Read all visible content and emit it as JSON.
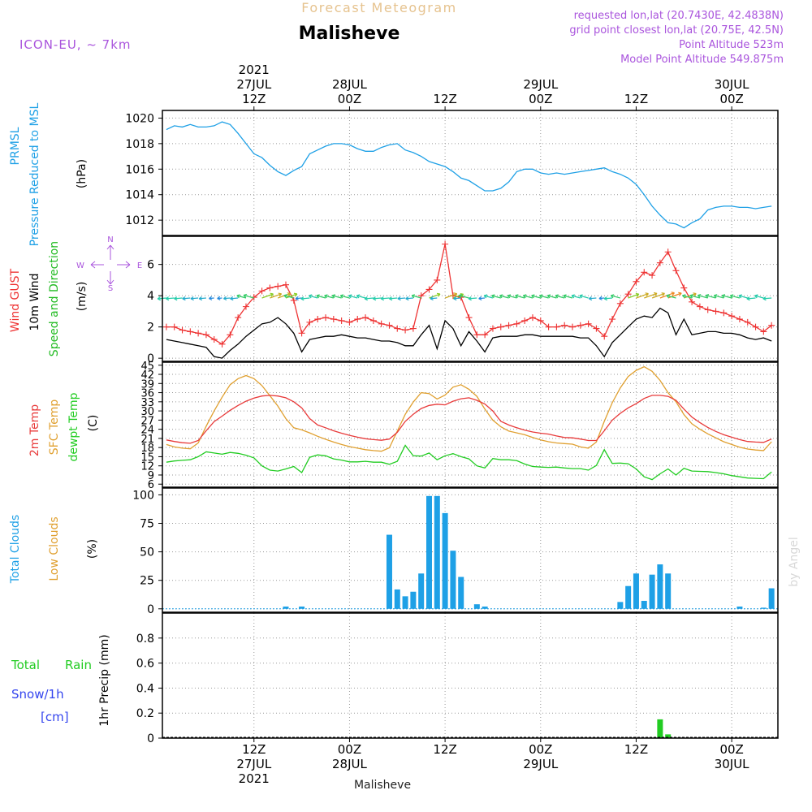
{
  "header": {
    "product": "Forecast Meteogram",
    "location": "Malisheve",
    "model": "ICON-EU, ~ 7km",
    "requested": "requested lon,lat (20.7430E, 42.4838N)",
    "gridpoint": "grid point closest lon,lat (20.75E, 42.5N)",
    "point_alt": "Point Altitude 523m",
    "model_alt": "Model Point Altitude 549.875m",
    "credit": "by Angel",
    "footer_location": "Malisheve"
  },
  "colors": {
    "pressure": "#1ea0e6",
    "gust": "#ee3333",
    "wind10m": "#000000",
    "wind_dir": "#22bb22",
    "temp2m": "#e83a3a",
    "sfc_temp": "#e0a030",
    "dewpt": "#22cc22",
    "total_clouds": "#1ea0e6",
    "low_clouds": "#e0a030",
    "rain": "#22cc22",
    "snow": "#3344ee",
    "title": "#e6c38f",
    "info": "#aa55dd",
    "grid": "#999999"
  },
  "chart_data": [
    {
      "type": "line",
      "panel": "pressure",
      "labels": [
        "PRMSL",
        "Pressure Reduced to MSL"
      ],
      "unit": "(hPa)",
      "ylim": [
        1010.8,
        1020.6
      ],
      "ticks": [
        "1012",
        "1014",
        "1016",
        "1018",
        "1020"
      ],
      "x": [
        0,
        1,
        2,
        3,
        4,
        5,
        6,
        7,
        8,
        9,
        10,
        11,
        12,
        13,
        14,
        15,
        16,
        17,
        18,
        19,
        20,
        21,
        22,
        23,
        24,
        25,
        26,
        27,
        28,
        29,
        30,
        31,
        32,
        33,
        34,
        35,
        36,
        37,
        38,
        39,
        40,
        41,
        42,
        43,
        44,
        45,
        46,
        47,
        48,
        49,
        50,
        51,
        52,
        53,
        54,
        55,
        56,
        57,
        58,
        59,
        60,
        61,
        62,
        63,
        64,
        65,
        66,
        67,
        68,
        69,
        70,
        71,
        72,
        73,
        74,
        75,
        76
      ],
      "series": [
        {
          "name": "PRMSL",
          "values": [
            1019.1,
            1019.4,
            1019.3,
            1019.5,
            1019.3,
            1019.3,
            1019.4,
            1019.7,
            1019.5,
            1018.8,
            1018.0,
            1017.2,
            1016.9,
            1016.3,
            1015.8,
            1015.5,
            1015.9,
            1016.2,
            1017.2,
            1017.5,
            1017.8,
            1018.0,
            1018.0,
            1017.9,
            1017.6,
            1017.4,
            1017.4,
            1017.7,
            1017.9,
            1018.0,
            1017.5,
            1017.3,
            1017.0,
            1016.6,
            1016.4,
            1016.2,
            1015.8,
            1015.3,
            1015.1,
            1014.7,
            1014.3,
            1014.3,
            1014.5,
            1015.0,
            1015.8,
            1016.0,
            1016.0,
            1015.7,
            1015.6,
            1015.7,
            1015.6,
            1015.7,
            1015.8,
            1015.9,
            1016.0,
            1016.1,
            1015.8,
            1015.6,
            1015.3,
            1014.8,
            1014.0,
            1013.1,
            1012.4,
            1011.8,
            1011.7,
            1011.4,
            1011.8,
            1012.1,
            1012.8,
            1013.0,
            1013.1,
            1013.1,
            1013.0,
            1013.0,
            1012.9,
            1013.0,
            1013.1
          ]
        }
      ]
    },
    {
      "type": "line",
      "panel": "wind",
      "labels": [
        "Wind GUST",
        "10m Wind",
        "Speed and Direction"
      ],
      "unit": "(m/s)",
      "ylim": [
        -0.2,
        7.8
      ],
      "ticks": [
        "0",
        "2",
        "4",
        "6"
      ],
      "compass": {
        "n": "N",
        "s": "S",
        "w": "W",
        "e": "E"
      },
      "x": [
        0,
        1,
        2,
        3,
        4,
        5,
        6,
        7,
        8,
        9,
        10,
        11,
        12,
        13,
        14,
        15,
        16,
        17,
        18,
        19,
        20,
        21,
        22,
        23,
        24,
        25,
        26,
        27,
        28,
        29,
        30,
        31,
        32,
        33,
        34,
        35,
        36,
        37,
        38,
        39,
        40,
        41,
        42,
        43,
        44,
        45,
        46,
        47,
        48,
        49,
        50,
        51,
        52,
        53,
        54,
        55,
        56,
        57,
        58,
        59,
        60,
        61,
        62,
        63,
        64,
        65,
        66,
        67,
        68,
        69,
        70,
        71,
        72,
        73,
        74,
        75,
        76
      ],
      "series": [
        {
          "name": "Wind GUST",
          "values": [
            2.0,
            2.0,
            1.8,
            1.7,
            1.6,
            1.5,
            1.2,
            0.9,
            1.5,
            2.6,
            3.3,
            3.9,
            4.3,
            4.5,
            4.6,
            4.7,
            3.7,
            1.6,
            2.3,
            2.5,
            2.6,
            2.5,
            2.4,
            2.3,
            2.5,
            2.6,
            2.4,
            2.2,
            2.1,
            1.9,
            1.8,
            1.9,
            4.0,
            4.4,
            5.0,
            7.3,
            4.0,
            3.9,
            2.6,
            1.5,
            1.5,
            1.9,
            2.0,
            2.1,
            2.2,
            2.4,
            2.6,
            2.4,
            2.0,
            2.0,
            2.1,
            2.0,
            2.1,
            2.2,
            1.9,
            1.4,
            2.5,
            3.5,
            4.1,
            4.9,
            5.5,
            5.3,
            6.1,
            6.8,
            5.6,
            4.5,
            3.6,
            3.3,
            3.1,
            3.0,
            2.9,
            2.7,
            2.5,
            2.3,
            2.0,
            1.7,
            2.1
          ]
        },
        {
          "name": "10m Wind",
          "values": [
            1.2,
            1.1,
            1.0,
            0.9,
            0.8,
            0.7,
            0.1,
            0.0,
            0.5,
            0.9,
            1.4,
            1.8,
            2.2,
            2.3,
            2.6,
            2.2,
            1.6,
            0.4,
            1.2,
            1.3,
            1.4,
            1.4,
            1.5,
            1.4,
            1.3,
            1.3,
            1.2,
            1.1,
            1.1,
            1.0,
            0.8,
            0.8,
            1.5,
            2.1,
            0.6,
            2.4,
            1.9,
            0.8,
            1.7,
            1.1,
            0.4,
            1.3,
            1.4,
            1.4,
            1.4,
            1.5,
            1.5,
            1.4,
            1.4,
            1.4,
            1.4,
            1.4,
            1.3,
            1.3,
            0.8,
            0.1,
            1.0,
            1.5,
            2.0,
            2.5,
            2.7,
            2.6,
            3.2,
            2.9,
            1.5,
            2.5,
            1.5,
            1.6,
            1.7,
            1.7,
            1.6,
            1.6,
            1.5,
            1.3,
            1.2,
            1.3,
            1.1
          ]
        }
      ]
    },
    {
      "type": "line",
      "panel": "temperature",
      "labels": [
        "2m Temp",
        "SFC Temp",
        "dewpt Temp"
      ],
      "unit": "(C)",
      "ylim": [
        5,
        46
      ],
      "ticks": [
        "6",
        "9",
        "12",
        "15",
        "18",
        "21",
        "24",
        "27",
        "30",
        "33",
        "36",
        "39",
        "42",
        "45"
      ],
      "x": [
        0,
        1,
        2,
        3,
        4,
        5,
        6,
        7,
        8,
        9,
        10,
        11,
        12,
        13,
        14,
        15,
        16,
        17,
        18,
        19,
        20,
        21,
        22,
        23,
        24,
        25,
        26,
        27,
        28,
        29,
        30,
        31,
        32,
        33,
        34,
        35,
        36,
        37,
        38,
        39,
        40,
        41,
        42,
        43,
        44,
        45,
        46,
        47,
        48,
        49,
        50,
        51,
        52,
        53,
        54,
        55,
        56,
        57,
        58,
        59,
        60,
        61,
        62,
        63,
        64,
        65,
        66,
        67,
        68,
        69,
        70,
        71,
        72,
        73,
        74,
        75,
        76
      ],
      "series": [
        {
          "name": "2m Temp",
          "values": [
            20.5,
            20.0,
            19.6,
            19.4,
            20.3,
            23.5,
            26.5,
            28.3,
            30.2,
            31.8,
            33.2,
            34.2,
            34.9,
            35.1,
            34.9,
            34.3,
            33.0,
            31.0,
            27.5,
            25.4,
            24.5,
            23.5,
            22.7,
            22.0,
            21.4,
            20.9,
            20.6,
            20.4,
            20.8,
            23.0,
            26.6,
            28.9,
            30.8,
            31.8,
            32.2,
            32.0,
            33.2,
            34.0,
            34.3,
            33.5,
            32.3,
            30.0,
            26.6,
            25.4,
            24.5,
            23.7,
            23.1,
            22.7,
            22.4,
            21.8,
            21.3,
            21.2,
            20.8,
            20.3,
            20.3,
            23.5,
            27.0,
            29.2,
            31.0,
            32.4,
            34.1,
            35.1,
            35.1,
            34.8,
            33.5,
            30.6,
            28.0,
            26.2,
            24.6,
            23.3,
            22.2,
            21.4,
            20.6,
            20.0,
            19.8,
            19.7,
            20.8
          ]
        },
        {
          "name": "SFC Temp",
          "values": [
            19.0,
            18.2,
            17.8,
            17.6,
            19.5,
            25.0,
            30.0,
            34.5,
            38.6,
            40.6,
            41.6,
            40.6,
            38.3,
            35.0,
            31.6,
            27.5,
            24.5,
            23.8,
            22.8,
            21.7,
            20.7,
            19.8,
            19.0,
            18.3,
            17.8,
            17.3,
            17.0,
            16.8,
            17.9,
            23.4,
            28.9,
            32.9,
            36.0,
            35.7,
            33.9,
            35.2,
            37.8,
            38.6,
            37.1,
            34.8,
            30.6,
            27.0,
            24.8,
            23.4,
            22.8,
            22.2,
            21.3,
            20.5,
            19.9,
            19.5,
            19.3,
            19.1,
            18.2,
            17.8,
            19.8,
            26.6,
            32.7,
            37.5,
            41.3,
            43.3,
            44.5,
            43.0,
            40.0,
            36.0,
            33.0,
            28.8,
            25.8,
            24.0,
            22.5,
            21.2,
            19.9,
            19.0,
            18.1,
            17.5,
            17.2,
            17.0,
            19.9
          ]
        },
        {
          "name": "dewpt Temp",
          "values": [
            13.2,
            13.6,
            13.8,
            14.0,
            15.0,
            16.6,
            16.2,
            15.8,
            16.4,
            16.1,
            15.5,
            14.6,
            12.0,
            10.6,
            10.3,
            11.0,
            11.8,
            9.8,
            14.8,
            15.6,
            15.3,
            14.3,
            13.9,
            13.3,
            13.3,
            13.5,
            13.2,
            13.2,
            12.5,
            13.5,
            18.7,
            15.3,
            15.2,
            16.2,
            14.0,
            15.3,
            16.0,
            15.0,
            14.3,
            12.0,
            11.3,
            14.4,
            14.0,
            14.0,
            13.7,
            12.6,
            11.8,
            11.6,
            11.5,
            11.6,
            11.3,
            11.1,
            11.1,
            10.6,
            12.1,
            17.3,
            12.8,
            12.9,
            12.7,
            11.0,
            8.4,
            7.5,
            9.4,
            11.0,
            9.0,
            11.2,
            10.3,
            10.2,
            10.1,
            9.8,
            9.4,
            8.8,
            8.4,
            8.0,
            7.9,
            7.8,
            10.0
          ]
        }
      ]
    },
    {
      "type": "bar",
      "panel": "clouds",
      "labels": [
        "Total Clouds",
        "Low Clouds"
      ],
      "unit": "(%)",
      "ylim": [
        -3,
        106
      ],
      "ticks": [
        "0",
        "25",
        "50",
        "75",
        "100"
      ],
      "x": [
        15,
        17,
        28,
        29,
        30,
        31,
        32,
        33,
        34,
        35,
        36,
        37,
        39,
        40,
        57,
        58,
        59,
        60,
        61,
        62,
        63,
        72,
        75,
        76
      ],
      "values": [
        2,
        2,
        65,
        17,
        11,
        15,
        31,
        99,
        99,
        84,
        51,
        28,
        4,
        2,
        6,
        20,
        31,
        7,
        30,
        39,
        31,
        2,
        1,
        18
      ]
    },
    {
      "type": "bar",
      "panel": "precip",
      "labels": [
        "Total",
        "Rain",
        "Snow/1h",
        "[cm]"
      ],
      "unit": "1hr Precip (mm)",
      "ylim": [
        0,
        1.0
      ],
      "ticks": [
        "0",
        "0.2",
        "0.4",
        "0.6",
        "0.8"
      ],
      "x": [
        62,
        63
      ],
      "values": [
        0.15,
        0.03
      ]
    }
  ],
  "time_axis": {
    "top": [
      {
        "x": 11,
        "lines": [
          "2021",
          "27JUL",
          "12Z"
        ]
      },
      {
        "x": 23,
        "lines": [
          "28JUL",
          "00Z"
        ]
      },
      {
        "x": 35,
        "lines": [
          "12Z"
        ]
      },
      {
        "x": 47,
        "lines": [
          "29JUL",
          "00Z"
        ]
      },
      {
        "x": 59,
        "lines": [
          "12Z"
        ]
      },
      {
        "x": 71,
        "lines": [
          "30JUL",
          "00Z"
        ]
      }
    ],
    "bottom": [
      {
        "x": 11,
        "lines": [
          "12Z",
          "27JUL",
          "2021"
        ]
      },
      {
        "x": 23,
        "lines": [
          "00Z",
          "28JUL"
        ]
      },
      {
        "x": 35,
        "lines": [
          "12Z"
        ]
      },
      {
        "x": 47,
        "lines": [
          "00Z",
          "29JUL"
        ]
      },
      {
        "x": 59,
        "lines": [
          "12Z"
        ]
      },
      {
        "x": 71,
        "lines": [
          "00Z",
          "30JUL"
        ]
      }
    ]
  }
}
